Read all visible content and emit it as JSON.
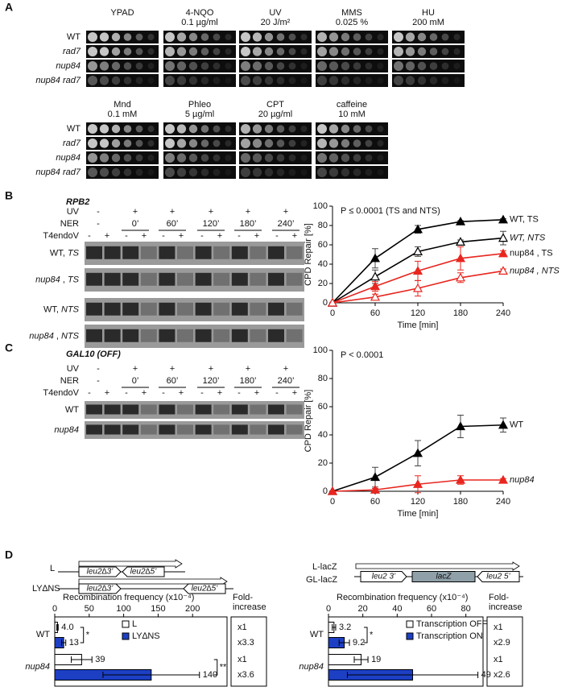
{
  "panel_a": {
    "label": "A",
    "rows": [
      {
        "conditions": [
          {
            "name": "YPAD"
          },
          {
            "name": "4-NQO",
            "dose": "0.1 µg/ml"
          },
          {
            "name": "UV",
            "dose": "20 J/m²"
          },
          {
            "name": "MMS",
            "dose": "0.025 %"
          },
          {
            "name": "HU",
            "dose": "200 mM"
          }
        ],
        "strains": [
          "WT",
          "rad7",
          "nup84",
          "nup84  rad7"
        ]
      },
      {
        "conditions": [
          {
            "name": "Mnd",
            "dose": "0.1 mM"
          },
          {
            "name": "Phleo",
            "dose": "5 µg/ml"
          },
          {
            "name": "CPT",
            "dose": "20 µg/ml"
          },
          {
            "name": "caffeine",
            "dose": "10 mM"
          }
        ],
        "strains": [
          "WT",
          "rad7",
          "nup84",
          "nup84  rad7"
        ]
      }
    ]
  },
  "panel_b": {
    "label": "B",
    "gene": "RPB2",
    "row_names": [
      "UV",
      "NER",
      "T4endoV"
    ],
    "uv": [
      "-",
      "+",
      "+",
      "+",
      "+",
      "+"
    ],
    "ner": [
      "-",
      "0’",
      "60’",
      "120’",
      "180’",
      "240’"
    ],
    "t4": [
      "-",
      "+"
    ],
    "lanes": [
      {
        "strain": "WT",
        "sep": ", ",
        "strand": "TS"
      },
      {
        "strain": "nup84",
        "sep": " , ",
        "strand": "TS"
      },
      {
        "strain": "WT",
        "sep": ", ",
        "strand": "NTS"
      },
      {
        "strain": "nup84",
        "sep": " , ",
        "strand": "NTS"
      }
    ]
  },
  "panel_c": {
    "label": "C",
    "gene": "GAL10 (OFF)",
    "row_names": [
      "UV",
      "NER",
      "T4endoV"
    ],
    "uv": [
      "-",
      "+",
      "+",
      "+",
      "+",
      "+"
    ],
    "ner": [
      "-",
      "0’",
      "60’",
      "120’",
      "180’",
      "240’"
    ],
    "t4": [
      "-",
      "+"
    ],
    "lanes": [
      {
        "strain": "WT"
      },
      {
        "strain": "nup84"
      }
    ]
  },
  "panel_d": {
    "label": "D",
    "left": {
      "constructs": [
        {
          "name": "L",
          "boxes": [
            "leu2∆3’",
            "leu2∆5’"
          ]
        },
        {
          "name": "LY∆NS",
          "boxes": [
            "leu2∆3’",
            "leu2∆5’"
          ]
        }
      ],
      "fold_header": [
        "Fold-",
        "increase"
      ],
      "fold": [
        "x1",
        "x3.3",
        "x1",
        "x3.6"
      ],
      "significance": [
        "*",
        "**"
      ]
    },
    "right": {
      "constructs": [
        {
          "name": "L-lacZ"
        },
        {
          "name": "GL-lacZ"
        }
      ],
      "boxes": [
        "leu2 3’",
        "lacZ",
        "leu2 5’"
      ],
      "fold_header": [
        "Fold-",
        "increase"
      ],
      "fold": [
        "x1",
        "x2.9",
        "x1",
        "x2.6"
      ],
      "significance": [
        "*"
      ]
    }
  },
  "chart_data": [
    {
      "type": "line",
      "annotation": "P ≤ 0.0001 (TS and NTS)",
      "xlabel": "Time [min]",
      "ylabel": "CPD Repair [%]",
      "x": [
        0,
        60,
        120,
        180,
        240
      ],
      "xlim": [
        0,
        240
      ],
      "xticks": [
        0,
        60,
        120,
        180,
        240
      ],
      "ylim": [
        0,
        100
      ],
      "yticks": [
        0,
        20,
        40,
        60,
        80,
        100
      ],
      "series": [
        {
          "name": "WT, TS",
          "color": "#000000",
          "marker": "filled",
          "values": [
            0,
            46,
            76,
            84,
            86
          ],
          "errors": [
            0,
            10,
            4,
            1,
            1
          ]
        },
        {
          "name": "WT, NTS",
          "color": "#000000",
          "marker": "open",
          "values": [
            0,
            27,
            53,
            63,
            67
          ],
          "errors": [
            0,
            7,
            5,
            2,
            7
          ]
        },
        {
          "name": "nup84 , TS",
          "color": "#e8261f",
          "marker": "filled",
          "values": [
            0,
            17,
            33,
            46,
            51
          ],
          "errors": [
            0,
            5,
            10,
            12,
            3
          ]
        },
        {
          "name": "nup84 , NTS",
          "color": "#e8261f",
          "marker": "open",
          "values": [
            0,
            6,
            15,
            26,
            33
          ],
          "errors": [
            0,
            3,
            8,
            5,
            2
          ]
        }
      ]
    },
    {
      "type": "line",
      "annotation": "P < 0.0001",
      "xlabel": "Time [min]",
      "ylabel": "CPD Repair [%]",
      "x": [
        0,
        60,
        120,
        180,
        240
      ],
      "xlim": [
        0,
        240
      ],
      "xticks": [
        0,
        60,
        120,
        180,
        240
      ],
      "ylim": [
        0,
        100
      ],
      "yticks": [
        0,
        20,
        40,
        60,
        80,
        100
      ],
      "series": [
        {
          "name": "WT",
          "color": "#000000",
          "marker": "filled",
          "values": [
            0,
            10,
            27,
            46,
            47
          ],
          "errors": [
            0,
            7,
            9,
            8,
            5
          ]
        },
        {
          "name": "nup84",
          "color": "#e8261f",
          "marker": "filled",
          "values": [
            0,
            1,
            5,
            8,
            8
          ],
          "errors": [
            0,
            1,
            6,
            3,
            1
          ]
        }
      ]
    },
    {
      "type": "hbar",
      "xlabel": "Recombination frequency (x10⁻⁴)",
      "categories": [
        "WT",
        "nup84"
      ],
      "xlim": [
        0,
        250
      ],
      "xticks": [
        0,
        50,
        100,
        150,
        200
      ],
      "series": [
        {
          "name": "L",
          "color": "#ffffff",
          "values": [
            4.0,
            39
          ],
          "value_labels": [
            "4.0",
            "39"
          ],
          "errors": [
            1,
            15
          ]
        },
        {
          "name": "LY∆NS",
          "color": "#1c3fc4",
          "values": [
            13,
            140
          ],
          "errors": [
            3,
            70
          ]
        }
      ]
    },
    {
      "type": "hbar",
      "xlabel": "Recombination frequency (x10⁻⁴)",
      "categories": [
        "WT",
        "nup84"
      ],
      "xlim": [
        0,
        90
      ],
      "xticks": [
        0,
        20,
        40,
        60,
        80
      ],
      "series": [
        {
          "name": "Transcription OFF",
          "color": "#ffffff",
          "values": [
            3.2,
            19
          ],
          "errors": [
            1,
            4
          ]
        },
        {
          "name": "Transcription ON",
          "color": "#1c3fc4",
          "values": [
            9.2,
            49
          ],
          "errors": [
            3,
            38
          ]
        }
      ]
    }
  ]
}
